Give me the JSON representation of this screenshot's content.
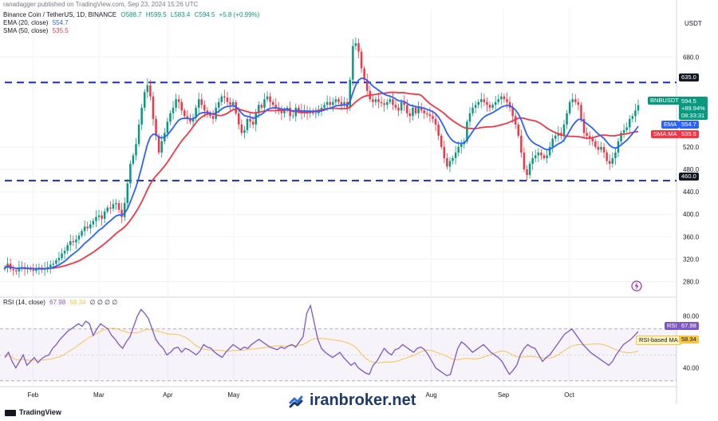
{
  "header": {
    "author": "ranadagger published on TradingView.com, Sep 23, 2024 15:26 UTC",
    "symbol": "Binance Coin / TetherUS, 1D, BINANCE",
    "ohlc": {
      "o": "O588.7",
      "h": "H599.5",
      "l": "L583.4",
      "c": "C594.5",
      "chg": "+5.8 (+0.99%)"
    },
    "ema_label": "EMA (20, close)",
    "ema_value": "554.7",
    "sma_label": "SMA (50, close)",
    "sma_value": "535.5",
    "rsi_label": "RSI (14, close)",
    "rsi_value": "67.98",
    "rsi_ma_value": "58.34",
    "rsi_extra": "∅ ∅ ∅ ∅"
  },
  "axis_unit": "USDT",
  "badges": {
    "symbol_tag": "BNBUSDT",
    "price": "594.5",
    "change": "+89.94%",
    "timer": "08:33:31",
    "ema_tag": "EMA",
    "ema_val": "554.7",
    "sma_tag": "SMA:MA",
    "sma_val": "535.5",
    "resistance": "635.0",
    "support": "460.0",
    "rsi_tag": "RSI",
    "rsi_val": "67.98",
    "rsi_ma_tag": "RSI-based MA",
    "rsi_ma_val": "58.34"
  },
  "footer": {
    "brand": "TradingView"
  },
  "watermark": "iranbroker.net",
  "colors": {
    "up": "#089981",
    "down": "#f23645",
    "ema": "#2962ff",
    "sma": "#f23645",
    "level": "#1a2fbe",
    "rsi": "#7e57c2",
    "rsi_ma": "#f7c548"
  },
  "chart_data": [
    {
      "type": "candlestick",
      "title": "Binance Coin / TetherUS, 1D, BINANCE",
      "x_ticks": [
        "Feb",
        "Mar",
        "Apr",
        "May",
        "Aug",
        "Sep",
        "Oct"
      ],
      "y_ticks": [
        280.0,
        320.0,
        360.0,
        400.0,
        440.0,
        480.0,
        520.0,
        680.0
      ],
      "ylim": [
        255,
        725
      ],
      "horizontal_levels": [
        635.0,
        460.0
      ],
      "candle_closes": [
        305,
        312,
        302,
        300,
        298,
        305,
        306,
        302,
        304,
        301,
        299,
        302,
        305,
        301,
        303,
        306,
        310,
        312,
        318,
        322,
        330,
        335,
        345,
        352,
        350,
        355,
        362,
        370,
        378,
        375,
        382,
        388,
        395,
        398,
        392,
        405,
        412,
        410,
        418,
        420,
        408,
        395,
        420,
        455,
        490,
        505,
        525,
        560,
        590,
        618,
        630,
        610,
        570,
        540,
        510,
        530,
        545,
        565,
        580,
        590,
        605,
        600,
        585,
        575,
        570,
        565,
        572,
        590,
        605,
        595,
        585,
        580,
        575,
        570,
        590,
        600,
        610,
        608,
        600,
        595,
        600,
        580,
        560,
        545,
        550,
        570,
        565,
        560,
        580,
        595,
        590,
        605,
        610,
        600,
        595,
        590,
        585,
        580,
        585,
        590,
        575,
        575,
        590,
        585,
        580,
        585,
        580,
        585,
        580,
        580,
        585,
        590,
        595,
        600,
        595,
        600,
        605,
        600,
        595,
        600,
        590,
        640,
        700,
        705,
        690,
        660,
        640,
        620,
        605,
        600,
        605,
        600,
        598,
        595,
        600,
        605,
        595,
        590,
        585,
        600,
        595,
        580,
        575,
        590,
        580,
        590,
        585,
        580,
        578,
        575,
        570,
        560,
        540,
        520,
        500,
        485,
        495,
        500,
        510,
        520,
        525,
        530,
        565,
        580,
        590,
        595,
        600,
        605,
        600,
        595,
        590,
        595,
        600,
        605,
        610,
        605,
        600,
        590,
        575,
        560,
        540,
        510,
        480,
        470,
        490,
        500,
        505,
        510,
        505,
        500,
        505,
        520,
        535,
        540,
        545,
        540,
        560,
        580,
        600,
        605,
        600,
        595,
        570,
        545,
        540,
        535,
        530,
        520,
        515,
        520,
        510,
        495,
        490,
        500,
        510,
        530,
        545,
        550,
        555,
        570,
        575,
        585,
        594.5
      ],
      "series": [
        {
          "name": "EMA (20, close)",
          "last": 554.7
        },
        {
          "name": "SMA (50, close)",
          "last": 535.5
        }
      ]
    },
    {
      "type": "line",
      "title": "RSI (14, close)",
      "y_ticks": [
        40.0,
        80.0
      ],
      "ylim": [
        28,
        92
      ],
      "bands": [
        70,
        30
      ],
      "values": [
        48,
        52,
        45,
        40,
        45,
        50,
        42,
        45,
        48,
        44,
        47,
        49,
        50,
        55,
        58,
        62,
        65,
        68,
        70,
        72,
        74,
        72,
        76,
        74,
        65,
        70,
        74,
        72,
        70,
        65,
        62,
        58,
        55,
        60,
        64,
        72,
        80,
        85,
        82,
        78,
        70,
        62,
        58,
        55,
        50,
        52,
        55,
        56,
        52,
        55,
        54,
        52,
        50,
        53,
        58,
        56,
        55,
        52,
        50,
        48,
        52,
        55,
        58,
        56,
        54,
        56,
        55,
        58,
        60,
        62,
        60,
        58,
        56,
        55,
        54,
        56,
        55,
        57,
        58,
        56,
        60,
        64,
        82,
        88,
        75,
        62,
        55,
        52,
        50,
        48,
        50,
        52,
        48,
        45,
        42,
        44,
        40,
        38,
        36,
        35,
        42,
        45,
        50,
        55,
        52,
        50,
        54,
        55,
        58,
        56,
        54,
        52,
        55,
        56,
        54,
        50,
        45,
        40,
        38,
        36,
        34,
        35,
        45,
        55,
        60,
        58,
        55,
        52,
        54,
        56,
        58,
        55,
        52,
        50,
        48,
        45,
        40,
        35,
        38,
        42,
        50,
        55,
        58,
        56,
        55,
        50,
        45,
        48,
        50,
        54,
        58,
        62,
        66,
        68,
        70,
        66,
        62,
        58,
        55,
        52,
        50,
        48,
        46,
        44,
        42,
        45,
        50,
        54,
        58,
        60,
        62,
        65,
        67.98
      ],
      "ma_last": 58.34
    }
  ]
}
